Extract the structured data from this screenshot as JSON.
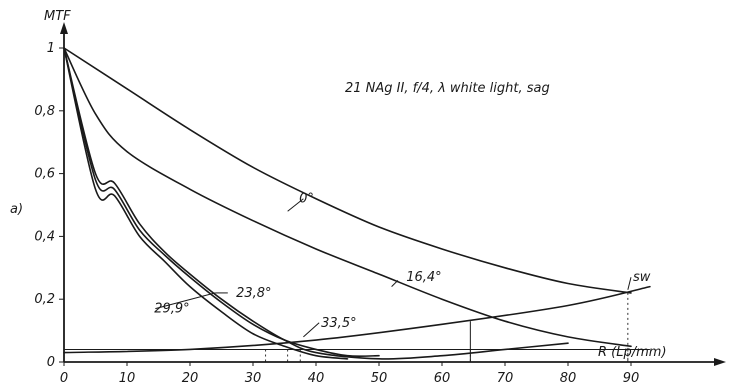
{
  "chart_data": {
    "type": "line",
    "title": "21 NAg II, f/4, λ white light, sag",
    "panel_label": "a)",
    "ylabel": "MTF",
    "xlabel": "R (Lp/mm)",
    "xlim": [
      0,
      95
    ],
    "ylim": [
      0,
      1.05
    ],
    "x_ticks": [
      "0",
      "10",
      "20",
      "30",
      "40",
      "50",
      "60",
      "70",
      "80",
      "90"
    ],
    "y_ticks": [
      "0",
      "0,2",
      "0,4",
      "0,6",
      "0,8",
      "1"
    ],
    "series": [
      {
        "name": "0°",
        "x": [
          0,
          10,
          20,
          30,
          40,
          50,
          60,
          70,
          80,
          90
        ],
        "y": [
          1.0,
          0.87,
          0.74,
          0.62,
          0.52,
          0.43,
          0.36,
          0.3,
          0.25,
          0.22
        ]
      },
      {
        "name": "16,4°",
        "x": [
          0,
          5,
          10,
          20,
          30,
          40,
          50,
          60,
          70,
          80,
          90
        ],
        "y": [
          1.0,
          0.79,
          0.67,
          0.55,
          0.45,
          0.36,
          0.28,
          0.2,
          0.13,
          0.08,
          0.05
        ]
      },
      {
        "name": "23,8°",
        "x": [
          0,
          5,
          8,
          12,
          16,
          20,
          25,
          30,
          35,
          40,
          45,
          50
        ],
        "y": [
          1.0,
          0.58,
          0.55,
          0.42,
          0.34,
          0.27,
          0.19,
          0.12,
          0.07,
          0.04,
          0.02,
          0.02
        ]
      },
      {
        "name": "29,9°",
        "x": [
          0,
          5,
          8,
          12,
          16,
          20,
          25,
          30,
          35,
          40,
          45
        ],
        "y": [
          1.0,
          0.55,
          0.53,
          0.4,
          0.32,
          0.24,
          0.16,
          0.09,
          0.05,
          0.02,
          0.01
        ]
      },
      {
        "name": "33,5°",
        "x": [
          0,
          5,
          8,
          12,
          16,
          20,
          25,
          30,
          35,
          40,
          50,
          60,
          70,
          80
        ],
        "y": [
          1.0,
          0.6,
          0.57,
          0.44,
          0.35,
          0.28,
          0.2,
          0.13,
          0.07,
          0.03,
          0.01,
          0.02,
          0.04,
          0.06
        ]
      },
      {
        "name": "sw",
        "x": [
          0,
          20,
          40,
          60,
          80,
          93
        ],
        "y": [
          0.03,
          0.04,
          0.07,
          0.12,
          0.18,
          0.24
        ]
      }
    ],
    "curve_labels": [
      "0°",
      "16,4°",
      "23,8°",
      "29,9°",
      "33,5°",
      "sw"
    ],
    "drop_lines_x": [
      32,
      35.5,
      37.5,
      64.5,
      89.5
    ],
    "threshold_y": 0.04,
    "grid": false
  }
}
